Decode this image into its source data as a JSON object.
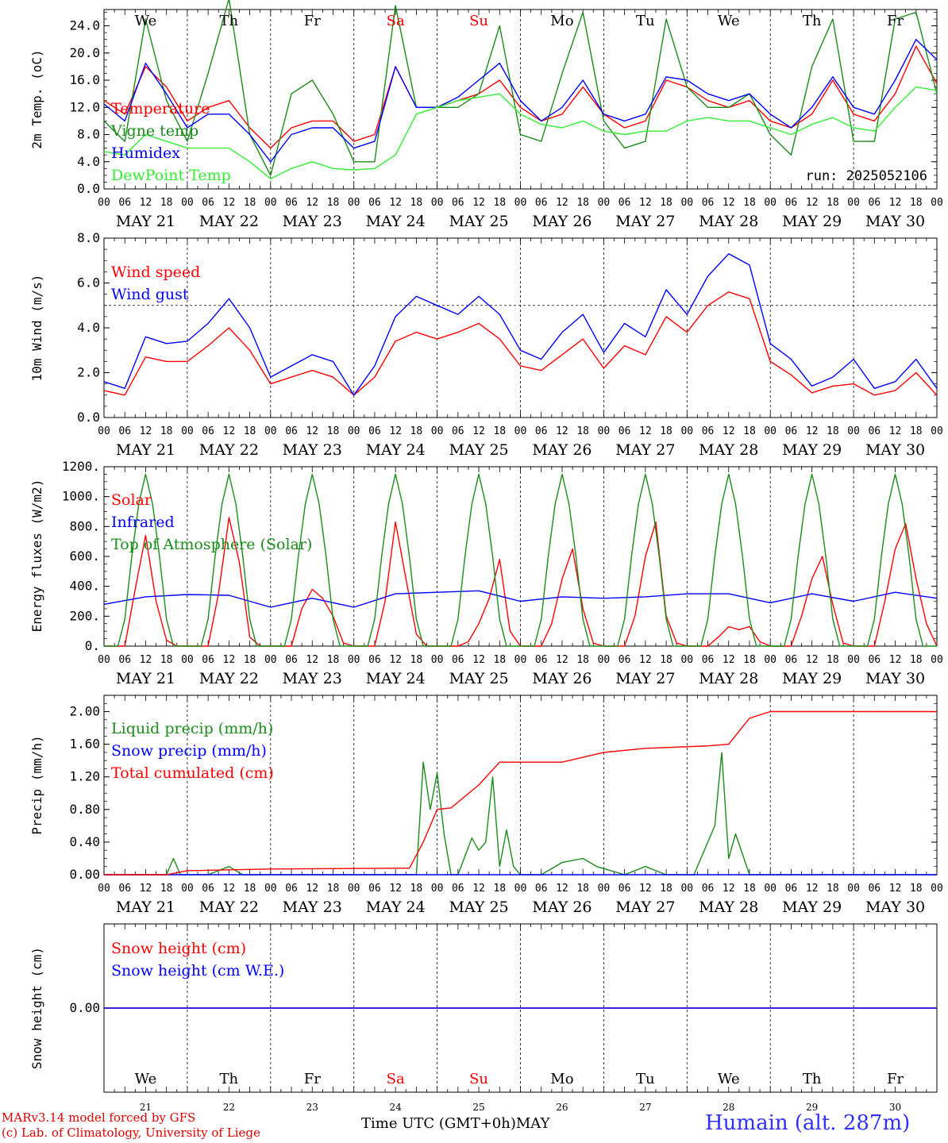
{
  "site_label": "Humain (alt. 287m)",
  "credits": [
    "MARv3.14 model forced by GFS",
    "(c) Lab. of Climatology, University of Liege"
  ],
  "time_axis_label": "Time UTC (GMT+0h)",
  "month_label": "MAY",
  "date_labels": [
    "MAY 21",
    "MAY 22",
    "MAY 23",
    "MAY 24",
    "MAY 25",
    "MAY 26",
    "MAY 27",
    "MAY 28",
    "MAY 29",
    "MAY 30"
  ],
  "day_numbers": [
    "21",
    "22",
    "23",
    "24",
    "25",
    "26",
    "27",
    "28",
    "29",
    "30"
  ],
  "weekdays": [
    "We",
    "Th",
    "Fr",
    "Sa",
    "Su",
    "Mo",
    "Tu",
    "We",
    "Th",
    "Fr"
  ],
  "weekday_colors": [
    "#000000",
    "#000000",
    "#000000",
    "#ff0000",
    "#ff0000",
    "#000000",
    "#000000",
    "#000000",
    "#000000",
    "#000000"
  ],
  "hour_ticks": [
    "00",
    "06",
    "12",
    "18"
  ],
  "chart_data": [
    {
      "type": "line",
      "ylabel": "2m Temp. (oC)",
      "run_label": "run: 2025052106",
      "ylim": [
        0,
        26.4
      ],
      "yticks": [
        "0.0",
        "4.0",
        "8.0",
        "12.0",
        "16.0",
        "20.0",
        "24.0"
      ],
      "x_unit": "hours since May 21 00 UTC",
      "series": [
        {
          "name": "Temperature",
          "color": "#ff0000",
          "x": [
            0,
            6,
            12,
            18,
            24,
            30,
            36,
            42,
            48,
            54,
            60,
            66,
            72,
            78,
            84,
            90,
            96,
            102,
            108,
            114,
            120,
            126,
            132,
            138,
            144,
            150,
            156,
            162,
            168,
            174,
            180,
            186,
            192,
            198,
            204,
            210,
            216,
            222,
            228,
            234,
            240
          ],
          "y": [
            13,
            11,
            18,
            15,
            10,
            12,
            13,
            9,
            6,
            9,
            10,
            10,
            7,
            8,
            18,
            12,
            12,
            13,
            14,
            16,
            12,
            10,
            11,
            15,
            11,
            9,
            10,
            16,
            15,
            13,
            12,
            13,
            10,
            9,
            11,
            16,
            11,
            10,
            14,
            21,
            15.5
          ]
        },
        {
          "name": "Vigne temp",
          "color": "#1a8c1a",
          "x": [
            0,
            6,
            12,
            18,
            24,
            30,
            36,
            42,
            48,
            54,
            60,
            66,
            72,
            78,
            84,
            90,
            96,
            102,
            108,
            114,
            120,
            126,
            132,
            138,
            144,
            150,
            156,
            162,
            168,
            174,
            180,
            186,
            192,
            198,
            204,
            210,
            216,
            222,
            228,
            234,
            240
          ],
          "y": [
            10,
            7,
            25,
            13,
            7,
            17,
            28,
            8,
            2,
            14,
            16,
            11,
            4,
            4,
            27,
            12,
            12,
            12,
            14,
            24,
            8,
            7,
            17,
            26,
            10,
            6,
            7,
            25,
            15,
            12,
            12,
            14,
            8,
            5,
            18,
            25,
            7,
            7,
            25,
            26,
            14
          ]
        },
        {
          "name": "Humidex",
          "color": "#0000ff",
          "x": [
            0,
            6,
            12,
            18,
            24,
            30,
            36,
            42,
            48,
            54,
            60,
            66,
            72,
            78,
            84,
            90,
            96,
            102,
            108,
            114,
            120,
            126,
            132,
            138,
            144,
            150,
            156,
            162,
            168,
            174,
            180,
            186,
            192,
            198,
            204,
            210,
            216,
            222,
            228,
            234,
            240
          ],
          "y": [
            12.5,
            10,
            18.5,
            14,
            9,
            11,
            11,
            8,
            4,
            8,
            9,
            9,
            6,
            7,
            18,
            12,
            12,
            13.5,
            16,
            18.5,
            13,
            10,
            12,
            16,
            11,
            10,
            11,
            16.5,
            16,
            14,
            13,
            14,
            11,
            9,
            12,
            16.5,
            12,
            11,
            16,
            22,
            19
          ]
        },
        {
          "name": "DewPoint Temp",
          "color": "#33ee33",
          "x": [
            0,
            6,
            12,
            18,
            24,
            30,
            36,
            42,
            48,
            54,
            60,
            66,
            72,
            78,
            84,
            90,
            96,
            102,
            108,
            114,
            120,
            126,
            132,
            138,
            144,
            150,
            156,
            162,
            168,
            174,
            180,
            186,
            192,
            198,
            204,
            210,
            216,
            222,
            228,
            234,
            240
          ],
          "y": [
            5.5,
            5,
            8,
            7,
            6,
            6,
            6,
            4,
            1.5,
            3,
            4,
            3,
            2.8,
            3,
            5,
            11,
            12,
            13,
            13.5,
            14,
            11,
            9.5,
            9,
            10,
            8.5,
            8,
            8.5,
            8.5,
            10,
            10.5,
            10,
            10,
            9,
            8,
            9.5,
            10.5,
            9,
            8.5,
            12,
            15,
            14.5
          ]
        }
      ]
    },
    {
      "type": "line",
      "ylabel": "10m Wind (m/s)",
      "ylim": [
        0,
        8.0
      ],
      "yticks": [
        "0.0",
        "2.0",
        "4.0",
        "6.0",
        "8.0"
      ],
      "reference_line": 5.0,
      "series": [
        {
          "name": "Wind speed",
          "color": "#ff0000",
          "x": [
            0,
            6,
            12,
            18,
            24,
            30,
            36,
            42,
            48,
            54,
            60,
            66,
            72,
            78,
            84,
            90,
            96,
            102,
            108,
            114,
            120,
            126,
            132,
            138,
            144,
            150,
            156,
            162,
            168,
            174,
            180,
            186,
            192,
            198,
            204,
            210,
            216,
            222,
            228,
            234,
            240
          ],
          "y": [
            1.2,
            1.0,
            2.7,
            2.5,
            2.5,
            3.2,
            4.0,
            3.0,
            1.5,
            1.8,
            2.1,
            1.8,
            1.0,
            1.8,
            3.4,
            3.8,
            3.5,
            3.8,
            4.2,
            3.5,
            2.3,
            2.1,
            2.8,
            3.5,
            2.2,
            3.2,
            2.8,
            4.5,
            3.8,
            5.0,
            5.6,
            5.3,
            2.5,
            1.9,
            1.1,
            1.4,
            1.5,
            1.0,
            1.2,
            2.0,
            1.0
          ]
        },
        {
          "name": "Wind gust",
          "color": "#0000ff",
          "x": [
            0,
            6,
            12,
            18,
            24,
            30,
            36,
            42,
            48,
            54,
            60,
            66,
            72,
            78,
            84,
            90,
            96,
            102,
            108,
            114,
            120,
            126,
            132,
            138,
            144,
            150,
            156,
            162,
            168,
            174,
            180,
            186,
            192,
            198,
            204,
            210,
            216,
            222,
            228,
            234,
            240
          ],
          "y": [
            1.6,
            1.3,
            3.6,
            3.3,
            3.4,
            4.2,
            5.3,
            4.0,
            1.8,
            2.3,
            2.8,
            2.5,
            1.0,
            2.3,
            4.5,
            5.4,
            5.0,
            4.6,
            5.4,
            4.6,
            3.0,
            2.6,
            3.8,
            4.6,
            2.9,
            4.2,
            3.6,
            5.7,
            4.6,
            6.3,
            7.3,
            6.8,
            3.3,
            2.6,
            1.4,
            1.8,
            2.6,
            1.3,
            1.6,
            2.6,
            1.3
          ]
        }
      ]
    },
    {
      "type": "line",
      "ylabel": "Energy fluxes (W/m2)",
      "ylim": [
        0,
        1200
      ],
      "yticks": [
        "0.",
        "200.",
        "400.",
        "600.",
        "800.",
        "1000.",
        "1200."
      ],
      "series": [
        {
          "name": "Solar",
          "color": "#ff0000",
          "x": [
            0,
            6,
            9,
            12,
            15,
            18,
            21,
            24,
            30,
            33,
            36,
            39,
            42,
            45,
            48,
            54,
            57,
            60,
            63,
            66,
            69,
            72,
            78,
            81,
            84,
            87,
            90,
            93,
            96,
            102,
            105,
            108,
            111,
            114,
            117,
            120,
            126,
            129,
            132,
            135,
            138,
            141,
            144,
            150,
            153,
            156,
            159,
            162,
            165,
            168,
            174,
            177,
            180,
            183,
            186,
            189,
            192,
            198,
            201,
            204,
            207,
            210,
            213,
            216,
            222,
            225,
            228,
            231,
            234,
            237,
            240
          ],
          "y": [
            0,
            0,
            380,
            740,
            300,
            40,
            0,
            0,
            0,
            350,
            860,
            560,
            60,
            0,
            0,
            0,
            250,
            380,
            320,
            200,
            20,
            0,
            0,
            300,
            830,
            450,
            80,
            0,
            0,
            0,
            30,
            150,
            320,
            580,
            100,
            0,
            0,
            150,
            450,
            650,
            250,
            20,
            0,
            0,
            200,
            600,
            830,
            200,
            20,
            0,
            0,
            60,
            130,
            110,
            130,
            30,
            0,
            0,
            200,
            450,
            600,
            280,
            20,
            0,
            0,
            300,
            650,
            820,
            450,
            150,
            0
          ]
        },
        {
          "name": "Infrared",
          "color": "#0000ff",
          "x": [
            0,
            12,
            24,
            36,
            48,
            60,
            72,
            84,
            96,
            108,
            120,
            132,
            144,
            156,
            168,
            180,
            192,
            204,
            216,
            228,
            240
          ],
          "y": [
            280,
            330,
            345,
            340,
            260,
            320,
            260,
            350,
            360,
            370,
            300,
            330,
            320,
            330,
            350,
            350,
            290,
            350,
            300,
            360,
            320
          ]
        },
        {
          "name": "Top of Atmosphere (Solar)",
          "color": "#1a8c1a",
          "x": [
            0,
            2,
            4,
            6,
            8,
            10,
            12,
            14,
            16,
            18,
            20,
            22,
            24
          ],
          "y": [
            0,
            0,
            0,
            180,
            600,
            950,
            1150,
            950,
            600,
            180,
            0,
            0,
            0
          ],
          "repeat_daily": true
        }
      ]
    },
    {
      "type": "line",
      "ylabel": "Precip (mm/h)",
      "ylim": [
        0,
        2.2
      ],
      "yticks": [
        "0.00",
        "0.40",
        "0.80",
        "1.20",
        "1.60",
        "2.00"
      ],
      "series": [
        {
          "name": "Liquid precip (mm/h)",
          "color": "#1a8c1a",
          "x": [
            0,
            18,
            20,
            22,
            30,
            36,
            40,
            90,
            92,
            94,
            96,
            98,
            100,
            102,
            106,
            108,
            110,
            112,
            114,
            116,
            118,
            120,
            126,
            132,
            138,
            142,
            150,
            156,
            162,
            170,
            174,
            176,
            178,
            180,
            182,
            186,
            240
          ],
          "y": [
            0,
            0,
            0.2,
            0,
            0,
            0.1,
            0,
            0,
            1.38,
            0.8,
            1.25,
            0.5,
            0,
            0,
            0.45,
            0.3,
            0.4,
            1.2,
            0.1,
            0.55,
            0.1,
            0,
            0,
            0.15,
            0.2,
            0.1,
            0,
            0.1,
            0,
            0,
            0.4,
            0.6,
            1.5,
            0.2,
            0.5,
            0,
            0
          ]
        },
        {
          "name": "Snow precip (mm/h)",
          "color": "#0000ff",
          "x": [
            0,
            240
          ],
          "y": [
            0,
            0
          ]
        },
        {
          "name": "Total cumulated (cm)",
          "color": "#ff0000",
          "x": [
            0,
            18,
            24,
            48,
            84,
            88,
            92,
            96,
            100,
            108,
            114,
            120,
            132,
            144,
            156,
            174,
            180,
            186,
            192,
            240
          ],
          "y": [
            0,
            0,
            0.05,
            0.07,
            0.08,
            0.08,
            0.4,
            0.8,
            0.82,
            1.1,
            1.38,
            1.38,
            1.38,
            1.5,
            1.55,
            1.58,
            1.6,
            1.92,
            2.0,
            2.0
          ]
        }
      ]
    },
    {
      "type": "line",
      "ylabel": "Snow height (cm)",
      "ylim": [
        -1,
        1
      ],
      "yticks": [
        "0.00"
      ],
      "series": [
        {
          "name": "Snow height (cm)",
          "color": "#ff0000",
          "x": [
            0,
            240
          ],
          "y": [
            0,
            0
          ]
        },
        {
          "name": "Snow height (cm W.E.)",
          "color": "#0000ff",
          "x": [
            0,
            240
          ],
          "y": [
            0,
            0
          ]
        }
      ]
    }
  ]
}
